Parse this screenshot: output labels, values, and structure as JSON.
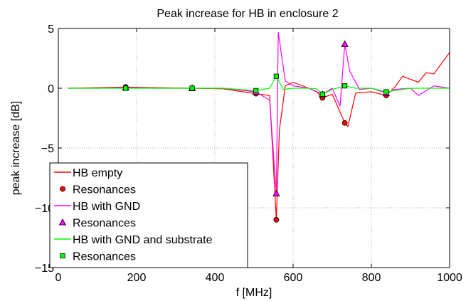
{
  "chart_data": {
    "type": "line",
    "title": "Peak increase for HB in enclosure 2",
    "xlabel": "f [MHz]",
    "ylabel": "peak increase [dB]",
    "xlim": [
      0,
      1000
    ],
    "ylim": [
      -15,
      5
    ],
    "xticks": [
      0,
      200,
      400,
      600,
      800,
      1000
    ],
    "yticks": [
      -15,
      -10,
      -5,
      0,
      5
    ],
    "grid": true,
    "legend_position": "bottom-left",
    "series": [
      {
        "name": "HB empty",
        "kind": "line",
        "color": "#ff0000",
        "x": [
          25,
          100,
          172,
          250,
          342,
          420,
          505,
          540,
          557,
          565,
          580,
          600,
          640,
          660,
          675,
          700,
          720,
          732,
          740,
          760,
          800,
          838,
          860,
          880,
          920,
          940,
          960,
          1000
        ],
        "y": [
          0,
          0.05,
          0.1,
          0.05,
          0,
          -0.05,
          -0.45,
          -0.6,
          -11,
          -3.5,
          0.2,
          0.5,
          0,
          -0.3,
          -0.8,
          -0.5,
          -2.0,
          -2.9,
          -3.2,
          -0.4,
          -0.3,
          -0.6,
          0.1,
          1.0,
          0.5,
          1.3,
          1.2,
          3.0
        ]
      },
      {
        "name": "Resonances",
        "kind": "markers",
        "marker": "circle",
        "color": "#ff0000",
        "x": [
          172,
          342,
          505,
          557,
          675,
          732,
          838
        ],
        "y": [
          0.1,
          0,
          -0.45,
          -11,
          -0.8,
          -2.9,
          -0.6
        ]
      },
      {
        "name": "HB with GND",
        "kind": "line",
        "color": "#ff00ff",
        "x": [
          25,
          100,
          172,
          250,
          342,
          420,
          505,
          540,
          557,
          562,
          580,
          600,
          640,
          675,
          700,
          720,
          732,
          745,
          770,
          800,
          838,
          860,
          900,
          920,
          960,
          1000
        ],
        "y": [
          0,
          0,
          0.05,
          0,
          0,
          0,
          -0.3,
          -1.0,
          -8.8,
          4.7,
          0.6,
          0.2,
          0,
          -0.5,
          0,
          -1.5,
          3.7,
          1.4,
          -0.1,
          0.0,
          -0.4,
          -0.1,
          0,
          -0.6,
          0.2,
          0
        ]
      },
      {
        "name": "Resonances",
        "kind": "markers",
        "marker": "triangle",
        "color": "#ff00ff",
        "x": [
          172,
          342,
          505,
          557,
          675,
          732,
          838
        ],
        "y": [
          0.05,
          0,
          -0.3,
          -8.8,
          -0.5,
          3.7,
          -0.4
        ]
      },
      {
        "name": "HB with GND and substrate",
        "kind": "line",
        "color": "#00ff00",
        "x": [
          25,
          100,
          172,
          250,
          342,
          420,
          505,
          540,
          557,
          575,
          600,
          640,
          660,
          675,
          700,
          732,
          760,
          800,
          838,
          900,
          1000
        ],
        "y": [
          0,
          0,
          0,
          0,
          0,
          0,
          -0.2,
          0,
          1.0,
          -0.1,
          0,
          0,
          -0.05,
          -0.5,
          -0.1,
          0.2,
          0,
          0,
          -0.3,
          0,
          0
        ]
      },
      {
        "name": "Resonances",
        "kind": "markers",
        "marker": "square",
        "color": "#00ff00",
        "x": [
          172,
          342,
          505,
          557,
          675,
          732,
          838
        ],
        "y": [
          0,
          0,
          -0.2,
          1.0,
          -0.5,
          0.2,
          -0.3
        ]
      }
    ]
  }
}
